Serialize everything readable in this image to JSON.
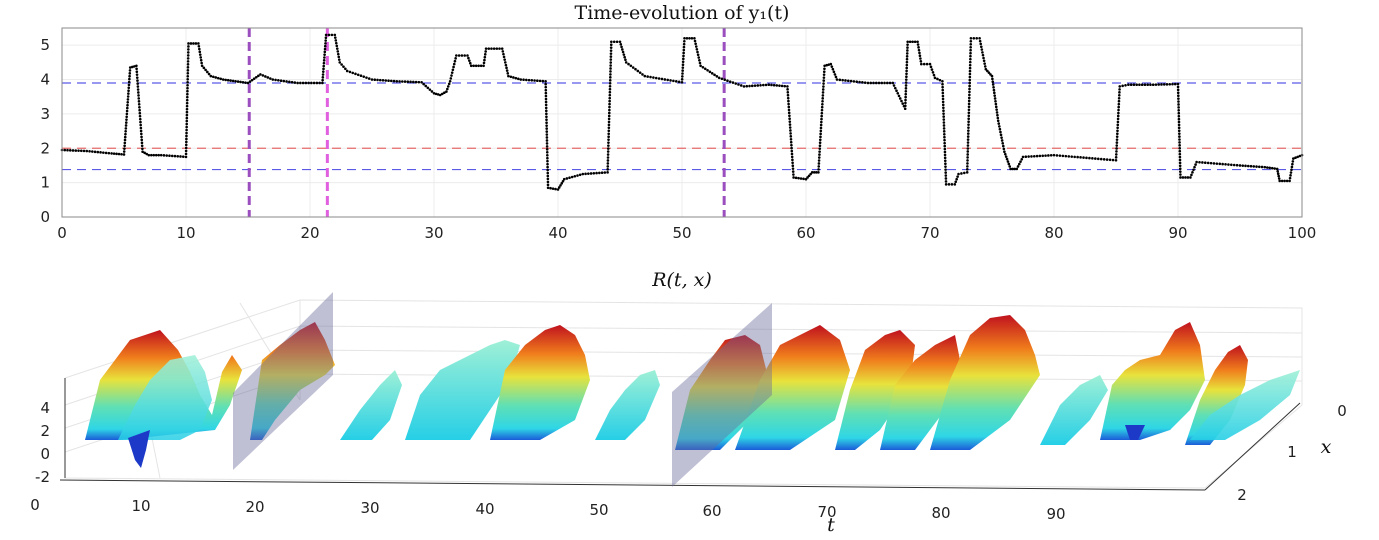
{
  "chart_data": [
    {
      "type": "scatter",
      "title": "Time-evolution of y₁(t)",
      "xlim": [
        0,
        100
      ],
      "ylim": [
        0,
        5.5
      ],
      "xticks": [
        "0",
        "10",
        "20",
        "30",
        "40",
        "50",
        "60",
        "70",
        "80",
        "90",
        "100"
      ],
      "yticks": [
        "0",
        "1",
        "2",
        "3",
        "4",
        "5"
      ],
      "grid": true,
      "hlines": [
        {
          "y": 3.9,
          "color": "#5a5ae6",
          "style": "dashed"
        },
        {
          "y": 2.0,
          "color": "#e66a6a",
          "style": "dashed"
        },
        {
          "y": 1.38,
          "color": "#5a5ae6",
          "style": "dashed"
        }
      ],
      "vlines": [
        {
          "x": 15.1,
          "color": "#9b4fbf",
          "style": "dashed"
        },
        {
          "x": 21.4,
          "color": "#e060e0",
          "style": "dashed"
        },
        {
          "x": 53.4,
          "color": "#9b4fbf",
          "style": "dashed"
        }
      ],
      "series": [
        {
          "color": "#000000",
          "points": [
            [
              0,
              1.95
            ],
            [
              2,
              1.92
            ],
            [
              4,
              1.85
            ],
            [
              5,
              1.82
            ],
            [
              5.5,
              4.35
            ],
            [
              6,
              4.4
            ],
            [
              6.5,
              1.9
            ],
            [
              7,
              1.8
            ],
            [
              8,
              1.8
            ],
            [
              10,
              1.75
            ],
            [
              10.2,
              5.05
            ],
            [
              11,
              5.05
            ],
            [
              11.3,
              4.4
            ],
            [
              12,
              4.1
            ],
            [
              13,
              4.0
            ],
            [
              14,
              3.95
            ],
            [
              15,
              3.9
            ],
            [
              16,
              4.15
            ],
            [
              17,
              4.0
            ],
            [
              19,
              3.9
            ],
            [
              21,
              3.9
            ],
            [
              21.3,
              5.3
            ],
            [
              22,
              5.3
            ],
            [
              22.4,
              4.5
            ],
            [
              23,
              4.25
            ],
            [
              25,
              4.0
            ],
            [
              27,
              3.95
            ],
            [
              29,
              3.92
            ],
            [
              30,
              3.6
            ],
            [
              30.5,
              3.55
            ],
            [
              31,
              3.65
            ],
            [
              31.3,
              3.95
            ],
            [
              31.8,
              4.7
            ],
            [
              32.7,
              4.7
            ],
            [
              33,
              4.4
            ],
            [
              34,
              4.4
            ],
            [
              34.2,
              4.9
            ],
            [
              35.5,
              4.9
            ],
            [
              36,
              4.1
            ],
            [
              37,
              4.0
            ],
            [
              39,
              3.95
            ],
            [
              39.2,
              0.85
            ],
            [
              40,
              0.8
            ],
            [
              40.5,
              1.1
            ],
            [
              42,
              1.25
            ],
            [
              44,
              1.3
            ],
            [
              44.3,
              5.1
            ],
            [
              45,
              5.1
            ],
            [
              45.5,
              4.5
            ],
            [
              47,
              4.1
            ],
            [
              50,
              3.92
            ],
            [
              50.2,
              5.2
            ],
            [
              51,
              5.2
            ],
            [
              51.5,
              4.4
            ],
            [
              53,
              4.05
            ],
            [
              55,
              3.8
            ],
            [
              57,
              3.85
            ],
            [
              58.5,
              3.8
            ],
            [
              59,
              1.15
            ],
            [
              60,
              1.1
            ],
            [
              60.5,
              1.3
            ],
            [
              61,
              1.3
            ],
            [
              61.5,
              4.4
            ],
            [
              62,
              4.45
            ],
            [
              62.5,
              4.0
            ],
            [
              65,
              3.9
            ],
            [
              67,
              3.9
            ],
            [
              68,
              3.15
            ],
            [
              68.2,
              5.1
            ],
            [
              69,
              5.1
            ],
            [
              69.3,
              4.45
            ],
            [
              70,
              4.45
            ],
            [
              70.4,
              4.05
            ],
            [
              71,
              3.95
            ],
            [
              71.3,
              0.95
            ],
            [
              72,
              0.95
            ],
            [
              72.3,
              1.25
            ],
            [
              73,
              1.3
            ],
            [
              73.3,
              5.2
            ],
            [
              74,
              5.2
            ],
            [
              74.5,
              4.3
            ],
            [
              75,
              4.1
            ],
            [
              75.5,
              2.8
            ],
            [
              76,
              1.9
            ],
            [
              76.5,
              1.4
            ],
            [
              77,
              1.4
            ],
            [
              77.5,
              1.75
            ],
            [
              80,
              1.8
            ],
            [
              85,
              1.65
            ],
            [
              85.3,
              3.8
            ],
            [
              86,
              3.85
            ],
            [
              88,
              3.85
            ],
            [
              90,
              3.87
            ],
            [
              90.2,
              1.15
            ],
            [
              91,
              1.15
            ],
            [
              91.5,
              1.6
            ],
            [
              95,
              1.5
            ],
            [
              97,
              1.45
            ],
            [
              98,
              1.4
            ],
            [
              98.2,
              1.05
            ],
            [
              99,
              1.05
            ],
            [
              99.3,
              1.7
            ],
            [
              100,
              1.8
            ]
          ]
        }
      ]
    },
    {
      "type": "surface",
      "title": "R(t, x)",
      "xlabel": "t",
      "ylabel": "x",
      "t_ticks": [
        "0",
        "10",
        "20",
        "30",
        "40",
        "50",
        "60",
        "70",
        "80",
        "90"
      ],
      "x_ticks": [
        "0",
        "1",
        "2"
      ],
      "z_ticks": [
        "4",
        "2",
        "0",
        "-2"
      ],
      "planes": [
        {
          "t": 15.1
        },
        {
          "t": 53.4
        }
      ],
      "grid": true
    }
  ]
}
